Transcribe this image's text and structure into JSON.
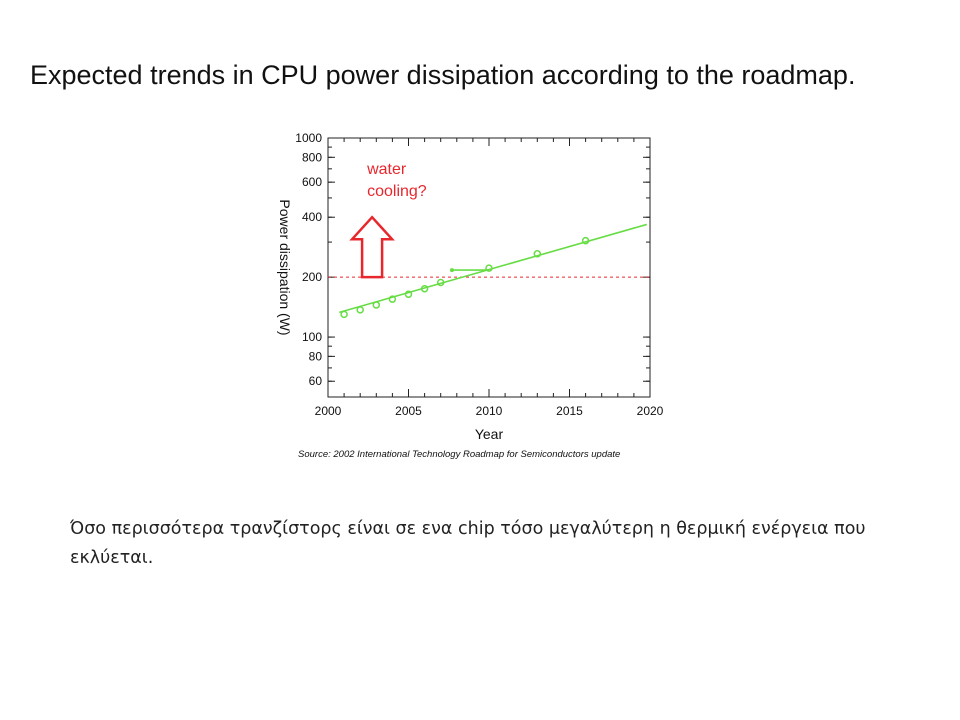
{
  "slide": {
    "title": "Expected trends in CPU power dissipation according to the roadmap.",
    "body_text": "Όσο περισσότερα τρανζίστορς είναι σε ενα chip τόσο μεγαλύτερη η θερμική ενέργεια που εκλύεται."
  },
  "chart_data": {
    "type": "scatter",
    "xlabel": "Year",
    "ylabel": "Power dissipation (W)",
    "xlim": [
      2000,
      2020
    ],
    "ylim": [
      50,
      1000
    ],
    "yscale": "log",
    "xticks": [
      2000,
      2005,
      2010,
      2015,
      2020
    ],
    "xtick_labels": [
      "2000",
      "2005",
      "2010",
      "2015",
      "2020"
    ],
    "yticks": [
      60,
      80,
      100,
      200,
      400,
      600,
      800,
      1000
    ],
    "ytick_labels": [
      "60",
      "80",
      "100",
      "200",
      "400",
      "600",
      "800",
      "1000"
    ],
    "grid": false,
    "source": "Source: 2002 International Technology Roadmap for Semiconductors update",
    "series": [
      {
        "kind": "points",
        "color": "#66dd44",
        "x": [
          2001,
          2002,
          2003,
          2004,
          2005,
          2006,
          2007,
          2010,
          2013,
          2016
        ],
        "y": [
          130,
          137,
          145,
          155,
          164,
          175,
          188,
          222,
          262,
          305
        ]
      },
      {
        "kind": "trend",
        "color": "#66dd44",
        "x": [
          2000.7,
          2019.8
        ],
        "y": [
          133,
          368
        ]
      },
      {
        "kind": "trend-short",
        "color": "#66dd44",
        "x": [
          2007.7,
          2010
        ],
        "y": [
          217,
          217
        ]
      }
    ],
    "reference_line": {
      "y": 200,
      "color": "#e8272d",
      "style": "dashed"
    },
    "annotation": {
      "text_lines": [
        "water",
        "cooling?"
      ],
      "color": "#e8272d",
      "arrow_x": 2001,
      "arrow_y_from": 200,
      "arrow_y_to": 400
    }
  }
}
